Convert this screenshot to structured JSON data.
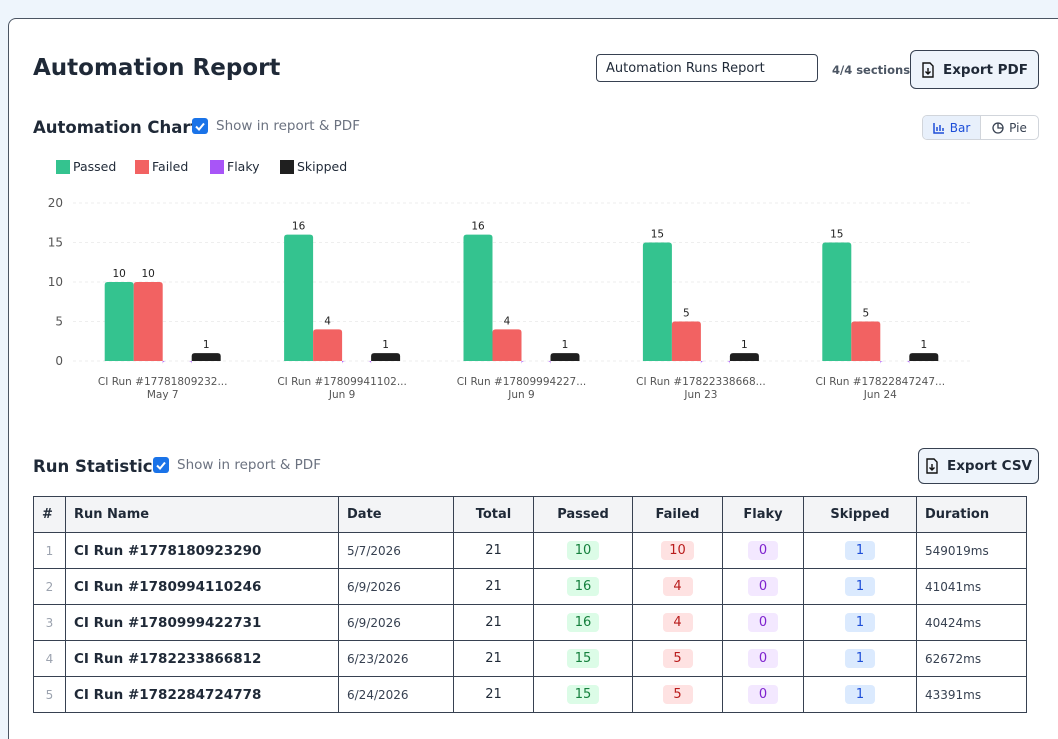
{
  "header": {
    "title": "Automation Report",
    "report_name": "Automation Runs Report",
    "sections": "4/4 sections",
    "export_pdf": "Export PDF"
  },
  "chart_section": {
    "title": "Automation Chart",
    "toggle": "Show in report & PDF",
    "modes": [
      "Bar",
      "Pie"
    ]
  },
  "chart_data": {
    "type": "bar",
    "categories": [
      "CI Run #17781809232...",
      "CI Run #17809941102...",
      "CI Run #17809994227...",
      "CI Run #17822338668...",
      "CI Run #17822847247..."
    ],
    "dates": [
      "May 7",
      "Jun 9",
      "Jun 9",
      "Jun 23",
      "Jun 24"
    ],
    "series": [
      {
        "name": "Passed",
        "color": "#34c38f",
        "values": [
          10,
          16,
          16,
          15,
          15
        ]
      },
      {
        "name": "Failed",
        "color": "#f26262",
        "values": [
          10,
          4,
          4,
          5,
          5
        ]
      },
      {
        "name": "Flaky",
        "color": "#a855f7",
        "values": [
          0,
          0,
          0,
          0,
          0
        ]
      },
      {
        "name": "Skipped",
        "color": "#1f1f1f",
        "values": [
          1,
          1,
          1,
          1,
          1
        ]
      }
    ],
    "ylim": [
      0,
      20
    ],
    "yticks": [
      0,
      5,
      10,
      15,
      20
    ],
    "grid": true
  },
  "table_section": {
    "title": "Run Statistics",
    "toggle": "Show in report & PDF",
    "export_csv": "Export CSV"
  },
  "table": {
    "columns": [
      "#",
      "Run Name",
      "Date",
      "Total",
      "Passed",
      "Failed",
      "Flaky",
      "Skipped",
      "Duration"
    ],
    "rows": [
      [
        1,
        "CI Run #1778180923290",
        "5/7/2026",
        21,
        10,
        10,
        0,
        1,
        "549019ms"
      ],
      [
        2,
        "CI Run #1780994110246",
        "6/9/2026",
        21,
        16,
        4,
        0,
        1,
        "41041ms"
      ],
      [
        3,
        "CI Run #1780999422731",
        "6/9/2026",
        21,
        16,
        4,
        0,
        1,
        "40424ms"
      ],
      [
        4,
        "CI Run #1782233866812",
        "6/23/2026",
        21,
        15,
        5,
        0,
        1,
        "62672ms"
      ],
      [
        5,
        "CI Run #1782284724778",
        "6/24/2026",
        21,
        15,
        5,
        0,
        1,
        "43391ms"
      ]
    ]
  }
}
